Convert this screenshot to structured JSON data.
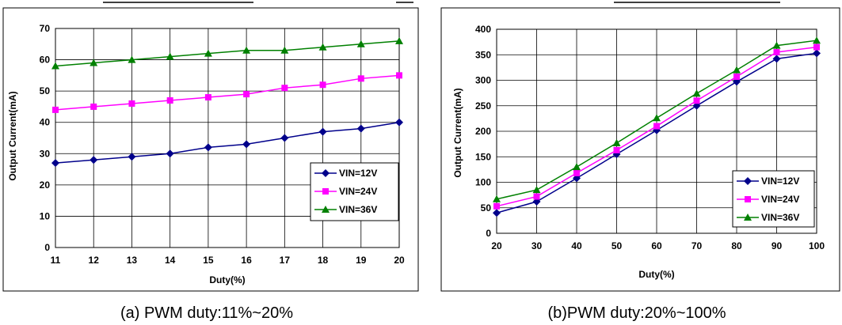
{
  "captions": [
    "(a) PWM duty:11%~20%",
    "(b)PWM duty:20%~100%"
  ],
  "colors": {
    "VIN=12V": "#00008b",
    "VIN=24V": "#ff00ff",
    "VIN=36V": "#008000"
  },
  "chart_data": [
    {
      "type": "line",
      "xlabel": "Duty(%)",
      "ylabel": "Output Current(mA)",
      "x": [
        11,
        12,
        13,
        14,
        15,
        16,
        17,
        18,
        19,
        20
      ],
      "xlim": [
        11,
        20
      ],
      "ylim": [
        0,
        70
      ],
      "yticks": [
        0,
        10,
        20,
        30,
        40,
        50,
        60,
        70
      ],
      "grid": true,
      "legend_position": "bottom-right",
      "series": [
        {
          "name": "VIN=12V",
          "marker": "diamond",
          "values": [
            27,
            28,
            29,
            30,
            32,
            33,
            35,
            37,
            38,
            40
          ]
        },
        {
          "name": "VIN=24V",
          "marker": "square",
          "values": [
            44,
            45,
            46,
            47,
            48,
            49,
            51,
            52,
            54,
            55
          ]
        },
        {
          "name": "VIN=36V",
          "marker": "triangle",
          "values": [
            58,
            59,
            60,
            61,
            62,
            63,
            63,
            64,
            65,
            66
          ]
        }
      ]
    },
    {
      "type": "line",
      "xlabel": "Duty(%)",
      "ylabel": "Output Current(mA)",
      "x": [
        20,
        30,
        40,
        50,
        60,
        70,
        80,
        90,
        100
      ],
      "xlim": [
        20,
        100
      ],
      "ylim": [
        0,
        400
      ],
      "yticks": [
        0,
        50,
        100,
        150,
        200,
        250,
        300,
        350,
        400
      ],
      "grid": true,
      "legend_position": "bottom-right",
      "series": [
        {
          "name": "VIN=12V",
          "marker": "diamond",
          "values": [
            40,
            62,
            108,
            155,
            202,
            250,
            297,
            342,
            353
          ]
        },
        {
          "name": "VIN=24V",
          "marker": "square",
          "values": [
            53,
            72,
            118,
            163,
            210,
            260,
            307,
            355,
            365
          ]
        },
        {
          "name": "VIN=36V",
          "marker": "triangle",
          "values": [
            67,
            85,
            130,
            177,
            226,
            274,
            320,
            368,
            378
          ]
        }
      ]
    }
  ]
}
